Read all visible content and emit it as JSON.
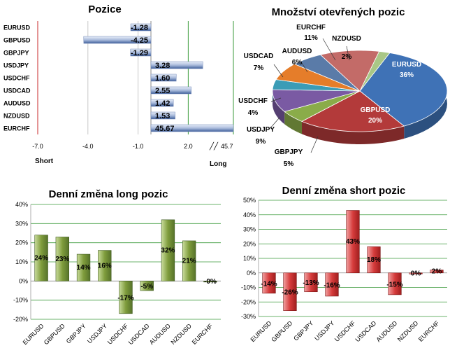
{
  "colors": {
    "pos_bar": "#8fa8d4",
    "green_bar": "#7a9a3a",
    "red_bar": "#d63c3c",
    "grid_green": "#3a9a3a",
    "axis_red": "#c8282b",
    "pie_eurusd": "#3f72b6",
    "pie_gbpusd": "#b33a3a",
    "pie_gbpjpy": "#8aac49",
    "pie_usdjpy": "#7a5aa3",
    "pie_usdchf": "#3b9cb6",
    "pie_usdcad": "#e57d2a",
    "pie_audusd": "#5a7ba8",
    "pie_eurchf": "#c36b68",
    "pie_nzdusd": "#a9c786"
  },
  "chart_data": [
    {
      "type": "bar",
      "orientation": "horizontal",
      "title": "Pozice",
      "categories": [
        "EURUSD",
        "GBPUSD",
        "GBPJPY",
        "USDJPY",
        "USDCHF",
        "USDCAD",
        "AUDUSD",
        "NZDUSD",
        "EURCHF"
      ],
      "values": [
        -1.28,
        -4.25,
        -1.29,
        3.28,
        1.6,
        2.55,
        1.42,
        1.53,
        45.67
      ],
      "value_labels": [
        "-1.28",
        "-4.25",
        "-1.29",
        "3.28",
        "1.60",
        "2.55",
        "1.42",
        "1.53",
        "45.67"
      ],
      "xticks": [
        "-7.0",
        "-4.0",
        "-1.0",
        "2.0"
      ],
      "xbreak_label": "45.7",
      "xlim": [
        -7.0,
        4.7
      ],
      "left_label": "Short",
      "right_label": "Long",
      "grid": true
    },
    {
      "type": "pie",
      "title": "Množství otevřených pozic",
      "slices": [
        {
          "name": "EURUSD",
          "value": 36,
          "label": "EURUSD",
          "pct": "36%"
        },
        {
          "name": "GBPUSD",
          "value": 20,
          "label": "GBPUSD",
          "pct": "20%"
        },
        {
          "name": "GBPJPY",
          "value": 5,
          "label": "GBPJPY",
          "pct": "5%"
        },
        {
          "name": "USDJPY",
          "value": 9,
          "label": "USDJPY",
          "pct": "9%"
        },
        {
          "name": "USDCHF",
          "value": 4,
          "label": "USDCHF",
          "pct": "4%"
        },
        {
          "name": "USDCAD",
          "value": 7,
          "label": "USDCAD",
          "pct": "7%"
        },
        {
          "name": "AUDUSD",
          "value": 6,
          "label": "AUDUSD",
          "pct": "6%"
        },
        {
          "name": "EURCHF",
          "value": 11,
          "label": "EURCHF",
          "pct": "11%"
        },
        {
          "name": "NZDUSD",
          "value": 2,
          "label": "NZDUSD",
          "pct": "2%"
        }
      ]
    },
    {
      "type": "bar",
      "title": "Denní změna long pozic",
      "categories": [
        "EURUSD",
        "GBPUSD",
        "GBPJPY",
        "USDJPY",
        "USDCHF",
        "USDCAD",
        "AUDUSD",
        "NZDUSD",
        "EURCHF"
      ],
      "values": [
        24,
        23,
        14,
        16,
        -17,
        -5,
        32,
        21,
        0
      ],
      "value_labels": [
        "24%",
        "23%",
        "14%",
        "16%",
        "-17%",
        "-5%",
        "32%",
        "21%",
        "-0%"
      ],
      "yticks": [
        "40%",
        "30%",
        "20%",
        "10%",
        "0%",
        "-10%",
        "-20%"
      ],
      "ylim": [
        -20,
        40
      ],
      "grid": true
    },
    {
      "type": "bar",
      "title": "Denní změna short pozic",
      "categories": [
        "EURUSD",
        "GBPUSD",
        "GBPJPY",
        "USDJPY",
        "USDCHF",
        "USDCAD",
        "AUDUSD",
        "NZDUSD",
        "EURCHF"
      ],
      "values": [
        -14,
        -26,
        -13,
        -16,
        43,
        18,
        -15,
        0,
        2
      ],
      "value_labels": [
        "-14%",
        "-26%",
        "-13%",
        "-16%",
        "43%",
        "18%",
        "-15%",
        "0%",
        "2%"
      ],
      "yticks": [
        "50%",
        "40%",
        "30%",
        "20%",
        "10%",
        "0%",
        "-10%",
        "-20%",
        "-30%"
      ],
      "ylim": [
        -30,
        50
      ],
      "grid": true
    }
  ]
}
